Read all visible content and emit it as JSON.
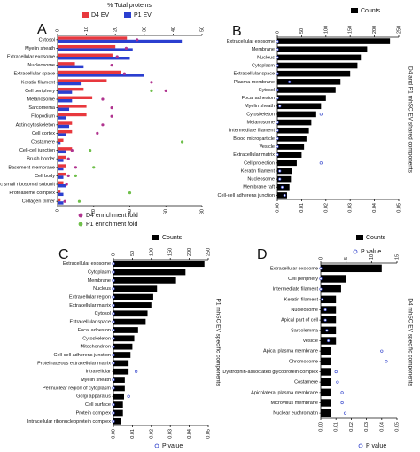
{
  "chart_data": [
    {
      "type": "bar",
      "panel_label": "A",
      "title": "% Total proteins",
      "categories": [
        "Cytosol",
        "Myelin sheath",
        "Extracellular exosome",
        "Nucleosome",
        "Extracellular space",
        "Keratin filament",
        "Cell periphery",
        "Melanosome",
        "Sarcomema",
        "Filopodium",
        "Actin cytoskeleton",
        "Cell cortex",
        "Costamere",
        "Cell-cell junction",
        "Brush border",
        "Basement membrane",
        "Cell body",
        "Cytosolic small ribosomal subunit",
        "Proteasome complex",
        "Collagen trimer"
      ],
      "series": [
        {
          "name": "D4 EV",
          "color": "#e8383d",
          "values": [
            24,
            20,
            19,
            6,
            22,
            17,
            9,
            12,
            10,
            10,
            5,
            5,
            2,
            5,
            3,
            3,
            3,
            2,
            1,
            1
          ]
        },
        {
          "name": "P1 EV",
          "color": "#2b3fd0",
          "values": [
            43,
            26,
            25,
            9,
            30,
            8,
            5,
            5,
            4,
            3,
            4,
            3,
            1,
            3,
            2,
            2,
            2,
            3,
            2,
            2
          ]
        },
        {
          "name": "D4 enrichment fold",
          "color": "#b0338f",
          "axis": "x2",
          "marker": "filled",
          "values": [
            44,
            38,
            33,
            30,
            37,
            52,
            60,
            25,
            30,
            30,
            25,
            22,
            null,
            8,
            6,
            10,
            6,
            5,
            null,
            4
          ]
        },
        {
          "name": "P1 enrichment fold",
          "color": "#6fbf4a",
          "axis": "x2",
          "marker": "filled",
          "values": [
            null,
            null,
            null,
            null,
            null,
            null,
            52,
            null,
            null,
            null,
            null,
            null,
            69,
            18,
            null,
            20,
            10,
            null,
            40,
            12
          ]
        }
      ],
      "xlim": [
        0,
        50
      ],
      "xticks": [
        0,
        10,
        20,
        30,
        40,
        50
      ],
      "x2lim": [
        0,
        80
      ],
      "x2ticks": [
        0,
        20,
        40,
        60,
        80
      ]
    },
    {
      "type": "bar",
      "panel_label": "B",
      "side_label": "D4 and P1 mhSC EV shared components",
      "categories": [
        "Extracellular exosome",
        "Membrane",
        "Nucleus",
        "Cytoplasm",
        "Extracellular space",
        "Plasma membrane",
        "Cytosol",
        "Focal adhesion",
        "Myelin sheath",
        "Cytoskeleton",
        "Melanosome",
        "Intermediate filament",
        "Blood microparticle",
        "Vesicle",
        "Extracellular matrix",
        "Cell projection",
        "Keratin filament",
        "Nucleosome",
        "Membrane raft",
        "Cell-cell adherens junction"
      ],
      "series": [
        {
          "name": "Counts",
          "color": "#000000",
          "values": [
            232,
            185,
            172,
            165,
            150,
            130,
            120,
            100,
            90,
            80,
            70,
            65,
            60,
            55,
            50,
            40,
            30,
            28,
            25,
            20
          ]
        },
        {
          "name": "P value",
          "color": "#3344cc",
          "axis": "x2",
          "marker": "open",
          "values": [
            0,
            0,
            0,
            0,
            0,
            0.005,
            0,
            0,
            0.001,
            0.018,
            0,
            0,
            0,
            0,
            0,
            0.018,
            0.001,
            0.001,
            0.002,
            0.003
          ]
        }
      ],
      "xlim": [
        0,
        250
      ],
      "xticks": [
        0,
        50,
        100,
        150,
        200,
        250
      ],
      "x2lim": [
        0,
        0.05
      ],
      "x2ticks": [
        {
          "value": 0,
          "label": "0.00"
        },
        0.01,
        0.02,
        0.03,
        0.04,
        0.05
      ]
    },
    {
      "type": "bar",
      "panel_label": "C",
      "side_label": "P1 mhSC EV specific components",
      "categories": [
        "Extracellular exosome",
        "Cytoplasm",
        "Membrane",
        "Nucleus",
        "Extracellular region",
        "Extracellular matrix",
        "Cytosol",
        "Extracellular space",
        "Focal adhesion",
        "Cytoskeleton",
        "Mitochondrion",
        "Cell-cell adherens junction",
        "Proteinaceous extracellular matrix",
        "Intracellular",
        "Myelin sheath",
        "Perinuclear region of cytoplasm",
        "Golgi apparatus",
        "Cell surface",
        "Protein complex",
        "Intracellular ribonucleoprotein complex"
      ],
      "series": [
        {
          "name": "Counts",
          "color": "#000000",
          "values": [
            240,
            190,
            165,
            115,
            105,
            100,
            90,
            85,
            65,
            55,
            50,
            45,
            40,
            40,
            30,
            30,
            28,
            25,
            25,
            20
          ]
        },
        {
          "name": "P value",
          "color": "#3344cc",
          "axis": "x2",
          "marker": "open",
          "values": [
            0,
            0,
            0,
            0,
            0,
            0,
            0,
            0,
            0,
            0,
            0,
            0,
            0,
            0.012,
            0,
            0,
            0.008,
            0,
            0,
            0
          ]
        }
      ],
      "xlim": [
        0,
        250
      ],
      "xticks": [
        0,
        50,
        100,
        150,
        200,
        250
      ],
      "x2lim": [
        0,
        0.05
      ],
      "x2ticks": [
        {
          "value": 0,
          "label": "0.00"
        },
        0.01,
        0.02,
        0.03,
        0.04,
        0.05
      ]
    },
    {
      "type": "bar",
      "panel_label": "D",
      "side_label": "D4 mhSC EV specific components",
      "categories": [
        "Extracellular exosome",
        "Cell periphery",
        "Intermediate filament",
        "Keratin filament",
        "Nucleosome",
        "Apical part of cell",
        "Sarcolemma",
        "Vesicle",
        "Apical plasma membrane",
        "Chromosome",
        "Dystrophin-associated glycoprotein complex",
        "Costamere",
        "Apicolateral plasma membrane",
        "Microvillus membrane",
        "Nuclear euchromatin"
      ],
      "series": [
        {
          "name": "Counts",
          "color": "#000000",
          "values": [
            12,
            5,
            4,
            3,
            3,
            3,
            3,
            3,
            2,
            2,
            2,
            2,
            2,
            2,
            2
          ]
        },
        {
          "name": "P value",
          "color": "#3344cc",
          "axis": "x2",
          "marker": "open",
          "values": [
            0,
            0,
            0,
            0.001,
            0.003,
            0.003,
            0.004,
            0.005,
            0.04,
            0.043,
            0.01,
            0.011,
            0.014,
            0.014,
            0.016
          ]
        }
      ],
      "xlim": [
        0,
        15
      ],
      "xticks": [
        0,
        5,
        10,
        15
      ],
      "x2lim": [
        0,
        0.05
      ],
      "x2ticks": [
        {
          "value": 0,
          "label": "0.00"
        },
        0.01,
        0.02,
        0.03,
        0.04,
        0.05
      ]
    }
  ]
}
